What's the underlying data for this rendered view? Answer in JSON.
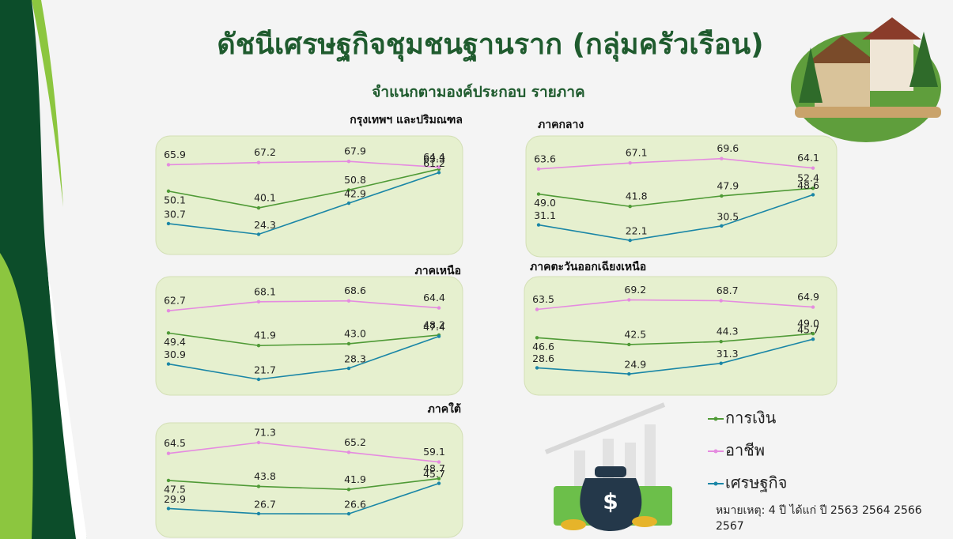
{
  "title": "ดัชนีเศรษฐกิจชุมชนฐานราก (กลุ่มครัวเรือน)",
  "subtitle": "จำแนกตามองค์ประกอบ รายภาค",
  "legend": {
    "items": [
      {
        "name": "การเงิน",
        "color": "#4f9a36"
      },
      {
        "name": "อาชีพ",
        "color": "#e58be0"
      },
      {
        "name": "เศรษฐกิจ",
        "color": "#1a86a6"
      }
    ]
  },
  "note": "หมายเหตุ: 4 ปี ได้แก่ ปี 2563 2564 2566 2567",
  "chart_data": [
    {
      "type": "line",
      "title": "กรุงเทพฯ และปริมณฑล",
      "categories": [
        null,
        null,
        null,
        null
      ],
      "series": [
        {
          "values": [
            50.1,
            40.1,
            50.8,
            63.3
          ],
          "value_labels": [
            "50.1",
            "40.1",
            "50.8",
            "63.3"
          ]
        },
        {
          "values": [
            65.9,
            67.2,
            67.9,
            64.4
          ],
          "value_labels": [
            "65.9",
            "67.2",
            "67.9",
            "64.4"
          ]
        },
        {
          "values": [
            30.7,
            24.3,
            42.9,
            61.2
          ],
          "value_labels": [
            "30.7",
            "24.3",
            "42.9",
            "61.2"
          ]
        }
      ]
    },
    {
      "type": "line",
      "title": "ภาคกลาง",
      "categories": [
        null,
        null,
        null,
        null
      ],
      "series": [
        {
          "values": [
            49.0,
            41.8,
            47.9,
            52.4
          ],
          "value_labels": [
            "49.0",
            "41.8",
            "47.9",
            "52.4"
          ]
        },
        {
          "values": [
            63.6,
            67.1,
            69.6,
            64.1
          ],
          "value_labels": [
            "63.6",
            "67.1",
            "69.6",
            "64.1"
          ]
        },
        {
          "values": [
            31.1,
            22.1,
            30.5,
            48.6
          ],
          "value_labels": [
            "31.1",
            "22.1",
            "30.5",
            "48.6"
          ]
        }
      ]
    },
    {
      "type": "line",
      "title": "ภาคเหนือ",
      "categories": [
        null,
        null,
        null,
        null
      ],
      "series": [
        {
          "values": [
            49.4,
            41.9,
            43.0,
            48.2
          ],
          "value_labels": [
            "49.4",
            "41.9",
            "43.0",
            "48.2"
          ]
        },
        {
          "values": [
            62.7,
            68.1,
            68.6,
            64.4
          ],
          "value_labels": [
            "62.7",
            "68.1",
            "68.6",
            "64.4"
          ]
        },
        {
          "values": [
            30.9,
            21.7,
            28.3,
            47.4
          ],
          "value_labels": [
            "30.9",
            "21.7",
            "28.3",
            "47.4"
          ]
        }
      ]
    },
    {
      "type": "line",
      "title": "ภาคตะวันออกเฉียงเหนือ",
      "categories": [
        null,
        null,
        null,
        null
      ],
      "series": [
        {
          "values": [
            46.6,
            42.5,
            44.3,
            49.0
          ],
          "value_labels": [
            "46.6",
            "42.5",
            "44.3",
            "49.0"
          ]
        },
        {
          "values": [
            63.5,
            69.2,
            68.7,
            64.9
          ],
          "value_labels": [
            "63.5",
            "69.2",
            "68.7",
            "64.9"
          ]
        },
        {
          "values": [
            28.6,
            24.9,
            31.3,
            45.7
          ],
          "value_labels": [
            "28.6",
            "24.9",
            "31.3",
            "45.7"
          ]
        }
      ]
    },
    {
      "type": "line",
      "title": "ภาคใต้",
      "categories": [
        null,
        null,
        null,
        null
      ],
      "series": [
        {
          "values": [
            47.5,
            43.8,
            41.9,
            48.7
          ],
          "value_labels": [
            "47.5",
            "43.8",
            "41.9",
            "48.7"
          ]
        },
        {
          "values": [
            64.5,
            71.3,
            65.2,
            59.1
          ],
          "value_labels": [
            "64.5",
            "71.3",
            "65.2",
            "59.1"
          ]
        },
        {
          "values": [
            29.9,
            26.7,
            26.6,
            45.7
          ],
          "value_labels": [
            "29.9",
            "26.7",
            "26.6",
            "45.7"
          ]
        }
      ]
    }
  ]
}
